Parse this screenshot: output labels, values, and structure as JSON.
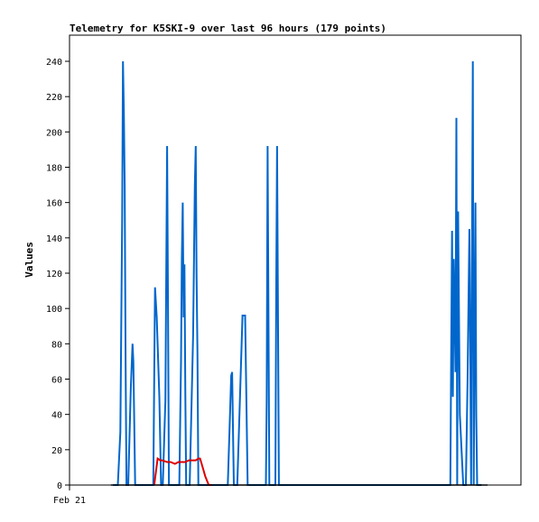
{
  "chart_data": {
    "type": "line",
    "title": "Telemetry for K5SKI-9 over last 96 hours (179 points)",
    "xlabel": "",
    "ylabel": "Values",
    "x_tick_labels": [
      "Feb 21"
    ],
    "ylim": [
      0,
      256
    ],
    "yticks": [
      0,
      20,
      40,
      60,
      80,
      100,
      120,
      140,
      160,
      180,
      200,
      220,
      240
    ],
    "xlim": [
      0,
      96
    ],
    "grid": false,
    "legend": "none",
    "series": [
      {
        "color": "#0066cc",
        "x": [
          1.5,
          2.6,
          3.2,
          3.4,
          3.6,
          3.8,
          4.0,
          4.2,
          4.4,
          4.6,
          5.0,
          5.6,
          6.0,
          6.2,
          6.4,
          6.6,
          7.0,
          7.6,
          10.8,
          11.0,
          11.2,
          11.6,
          12.2,
          12.6,
          13.0,
          13.6,
          14.0,
          14.2,
          14.4,
          14.6,
          16.8,
          17.2,
          17.4,
          17.6,
          17.8,
          18.0,
          18.2,
          18.4,
          18.6,
          18.8,
          19.2,
          20.0,
          20.4,
          20.6,
          20.8,
          21.0,
          21.2,
          21.6,
          28.0,
          28.8,
          29.0,
          29.4,
          29.6,
          30.2,
          31.4,
          31.6,
          31.8,
          32.0,
          32.6,
          33.8,
          34.0,
          36.8,
          37.0,
          37.2,
          37.6,
          39.0,
          39.2,
          39.4,
          39.8,
          79.4,
          79.6,
          79.8,
          80.0,
          80.2,
          80.6,
          80.8,
          81.0,
          81.2,
          81.6,
          82.4,
          83.0,
          83.4,
          83.8,
          84.0,
          84.2,
          84.4,
          84.6,
          84.8,
          85.0,
          85.2,
          85.4,
          85.6,
          85.8,
          86.6
        ],
        "y": [
          0,
          0,
          30,
          90,
          150,
          240,
          210,
          170,
          70,
          0,
          0,
          55,
          80,
          70,
          35,
          0,
          0,
          0,
          0,
          60,
          112,
          95,
          50,
          0,
          0,
          48,
          192,
          100,
          0,
          0,
          0,
          70,
          128,
          160,
          95,
          125,
          50,
          0,
          0,
          0,
          0,
          85,
          170,
          192,
          120,
          75,
          0,
          0,
          0,
          62,
          64,
          0,
          0,
          0,
          96,
          96,
          96,
          96,
          0,
          0,
          0,
          0,
          48,
          192,
          0,
          0,
          115,
          192,
          0,
          0,
          72,
          144,
          50,
          128,
          64,
          208,
          0,
          155,
          40,
          0,
          0,
          60,
          145,
          80,
          0,
          120,
          240,
          0,
          80,
          160,
          40,
          0,
          0,
          0
        ]
      },
      {
        "color": "#dd0000",
        "x": [
          11.0,
          11.8,
          12.4,
          12.8,
          14.0,
          14.8,
          15.8,
          16.6,
          17.4,
          18.2,
          19.0,
          19.8,
          20.6,
          21.2,
          21.6,
          22.2,
          22.8,
          23.6,
          24.4
        ],
        "y": [
          0,
          15,
          14,
          14,
          13,
          13,
          12,
          13,
          13,
          13,
          14,
          14,
          14,
          15,
          15,
          10,
          5,
          0,
          0
        ]
      },
      {
        "color": "#000000",
        "x": [
          1.0,
          88.0
        ],
        "y": [
          0,
          0
        ]
      }
    ]
  }
}
